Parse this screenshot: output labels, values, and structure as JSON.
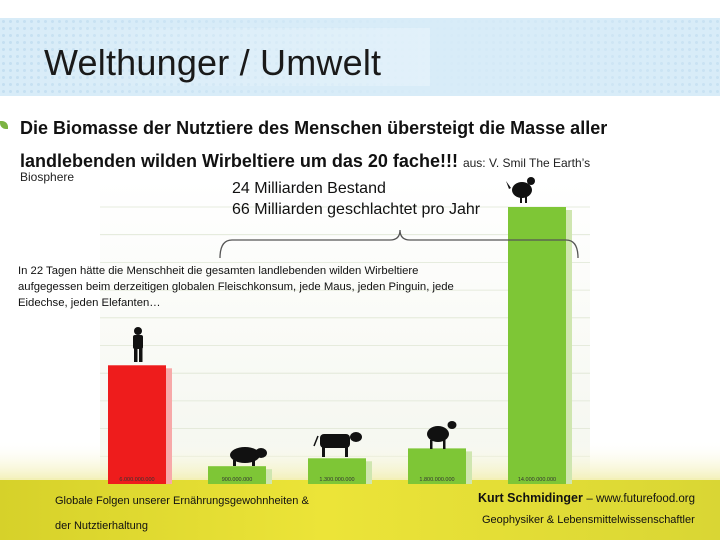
{
  "slide": {
    "title": "Welthunger / Umwelt",
    "headline": "Die Biomasse der Nutztiere des Menschen übersteigt die Masse aller landlebenden wilden Wirbeltiere um das 20 fache!!!",
    "source_inline": "aus: V. Smil The Earth’s",
    "source_cont": "Biosphere",
    "stock_line": "24 Milliarden Bestand",
    "slaughter_line": "66 Milliarden geschlachtet pro Jahr",
    "info_text": "In 22 Tagen hätte die Menschheit die gesamten landlebenden wilden Wirbeltiere aufgegessen beim derzeitigen globalen Fleischkonsum, jede Maus, jeden Pinguin, jede Eidechse, jeden Elefanten…",
    "footer_left_1": "Globale Folgen unserer Ernährungsgewohnheiten &",
    "footer_left_2": "der Nutztierhaltung",
    "footer_author": "Kurt Schmidinger",
    "footer_url": "– www.futurefood.org",
    "footer_role": "Geophysiker & Lebensmittelwissenschaftler"
  },
  "colors": {
    "human_bar": "#ee1c1c",
    "livestock_bar": "#7ec636",
    "title_band": "#d8ecf8",
    "footer_band": "#e6dc2a"
  },
  "chart_data": {
    "type": "bar",
    "categories": [
      "human-icon",
      "pig-icon",
      "cow-icon",
      "sheep-icon",
      "chicken-icon"
    ],
    "values": [
      6000000000,
      900000000,
      1300000000,
      1800000000,
      14000000000
    ],
    "value_labels": [
      "6.000.000.000",
      "900.000.000",
      "1.300.000.000",
      "1.800.000.000",
      "14.000.000.000"
    ],
    "bar_colors": [
      "#ee1c1c",
      "#7ec636",
      "#7ec636",
      "#7ec636",
      "#7ec636"
    ],
    "ylim": [
      0,
      14000000000
    ],
    "grid": true,
    "title": "",
    "xlabel": "",
    "ylabel": ""
  }
}
